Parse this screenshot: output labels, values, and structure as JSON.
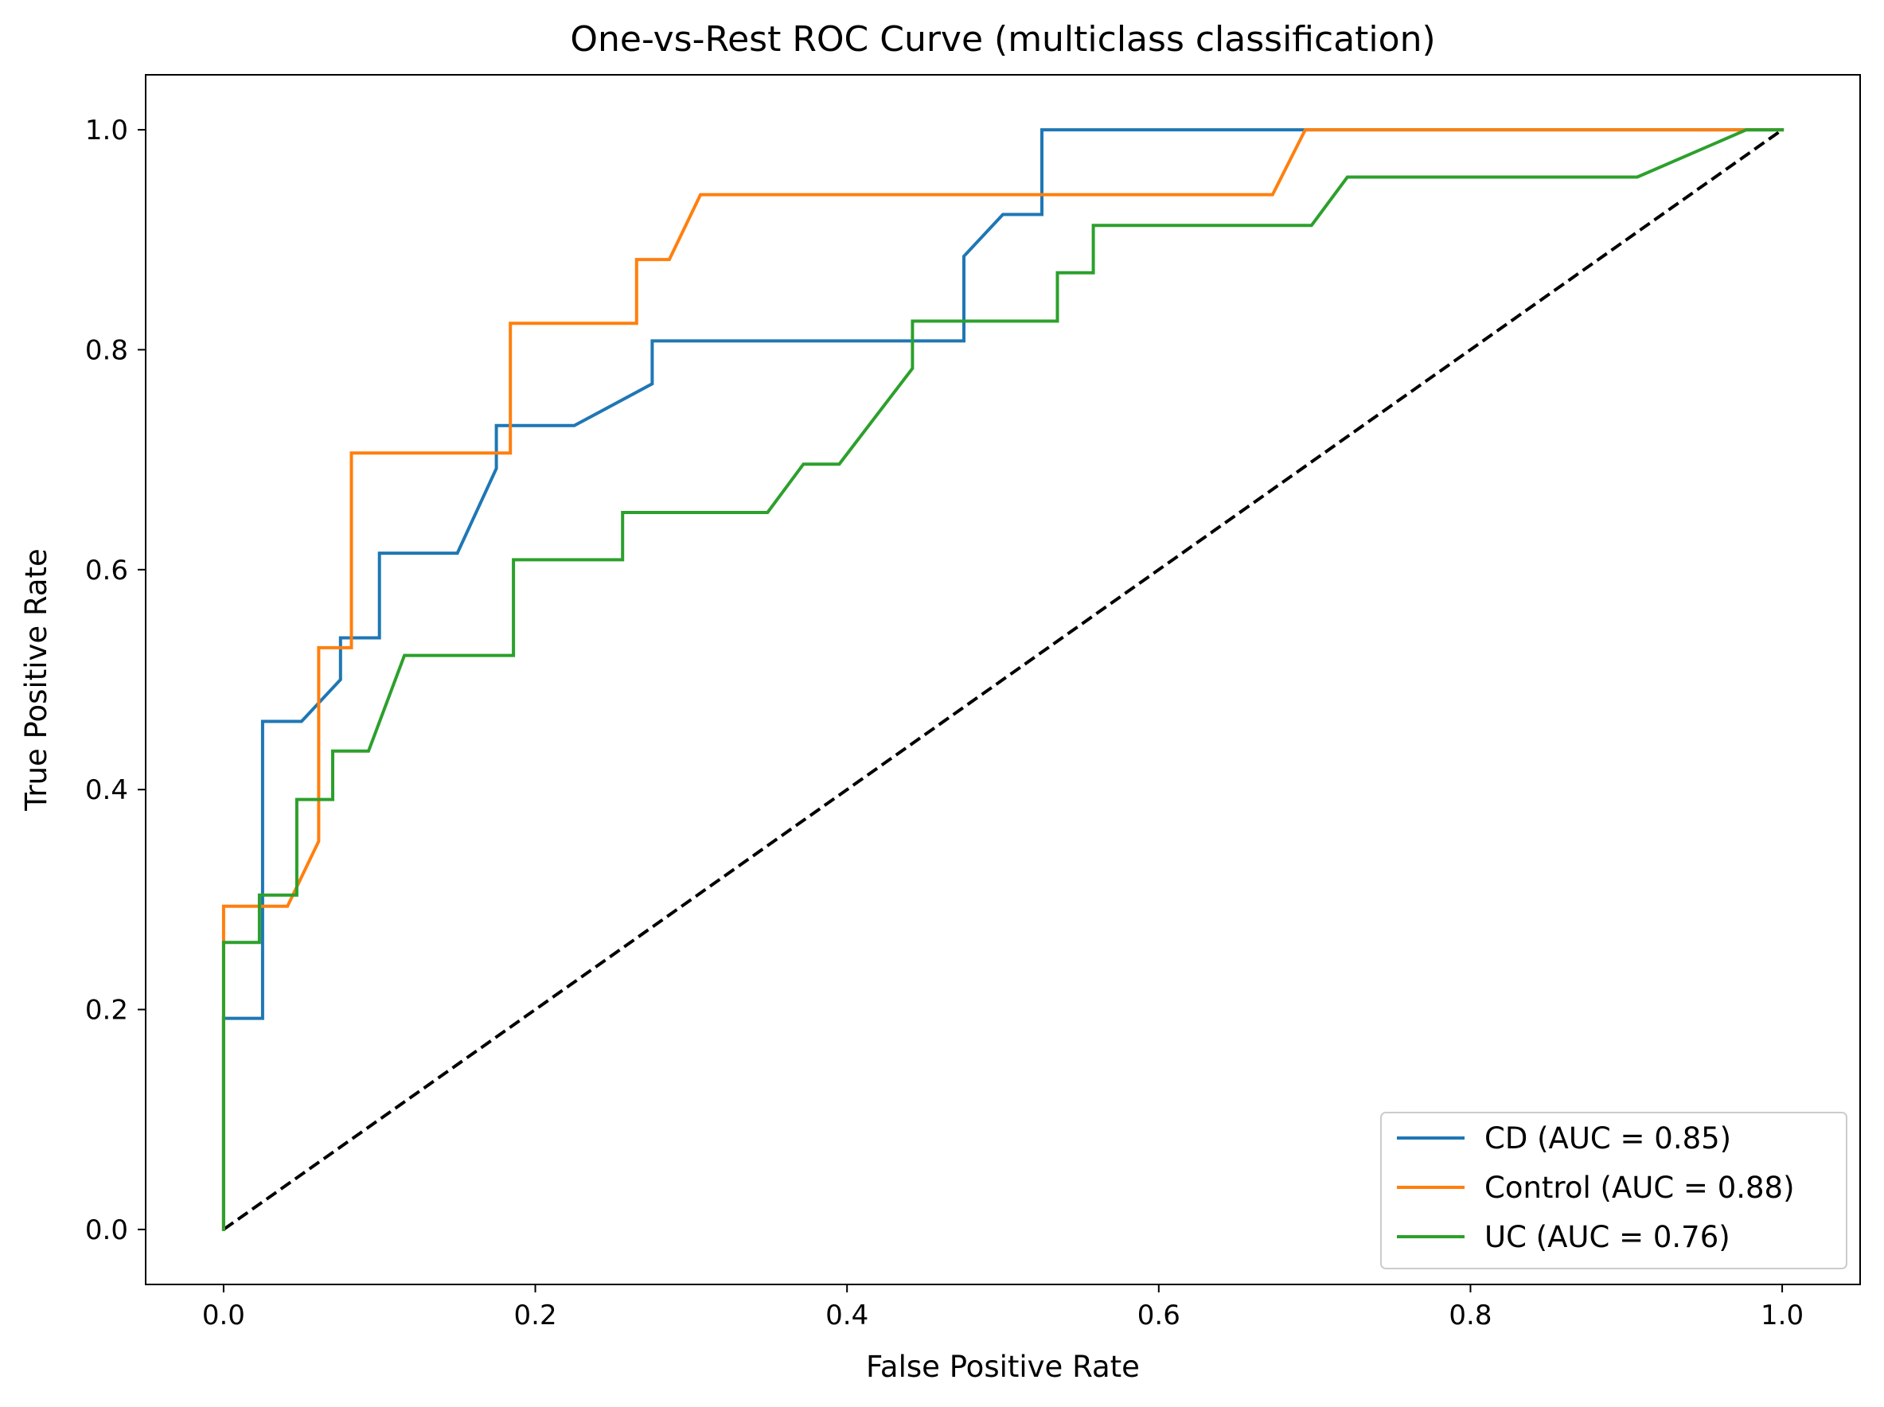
{
  "chart_data": {
    "type": "line",
    "title": "One-vs-Rest ROC Curve (multiclass classification)",
    "xlabel": "False Positive Rate",
    "ylabel": "True Positive Rate",
    "xlim": [
      -0.05,
      1.05
    ],
    "ylim": [
      -0.05,
      1.05
    ],
    "xticks": [
      0.0,
      0.2,
      0.4,
      0.6,
      0.8,
      1.0
    ],
    "yticks": [
      0.0,
      0.2,
      0.4,
      0.6,
      0.8,
      1.0
    ],
    "xtick_labels": [
      "0.0",
      "0.2",
      "0.4",
      "0.6",
      "0.8",
      "1.0"
    ],
    "ytick_labels": [
      "0.0",
      "0.2",
      "0.4",
      "0.6",
      "0.8",
      "1.0"
    ],
    "grid": false,
    "legend_position": "lower-right",
    "series": [
      {
        "name": "CD (AUC = 0.85)",
        "color": "#1f77b4",
        "x": [
          0.0,
          0.0,
          0.025,
          0.025,
          0.05,
          0.075,
          0.075,
          0.1,
          0.1,
          0.15,
          0.175,
          0.175,
          0.225,
          0.275,
          0.275,
          0.475,
          0.475,
          0.5,
          0.525,
          0.525,
          0.7,
          1.0
        ],
        "y": [
          0.0,
          0.192,
          0.192,
          0.462,
          0.462,
          0.5,
          0.538,
          0.538,
          0.615,
          0.615,
          0.692,
          0.731,
          0.731,
          0.769,
          0.808,
          0.808,
          0.885,
          0.923,
          0.923,
          1.0,
          1.0,
          1.0
        ]
      },
      {
        "name": "Control (AUC = 0.88)",
        "color": "#ff7f0e",
        "x": [
          0.0,
          0.0,
          0.041,
          0.061,
          0.061,
          0.082,
          0.082,
          0.184,
          0.184,
          0.265,
          0.265,
          0.286,
          0.306,
          0.673,
          0.694,
          0.98,
          1.0
        ],
        "y": [
          0.0,
          0.294,
          0.294,
          0.353,
          0.529,
          0.529,
          0.706,
          0.706,
          0.824,
          0.824,
          0.882,
          0.882,
          0.941,
          0.941,
          1.0,
          1.0,
          1.0
        ]
      },
      {
        "name": "UC (AUC = 0.76)",
        "color": "#2ca02c",
        "x": [
          0.0,
          0.0,
          0.023,
          0.023,
          0.047,
          0.047,
          0.07,
          0.07,
          0.093,
          0.116,
          0.186,
          0.186,
          0.256,
          0.256,
          0.349,
          0.372,
          0.395,
          0.442,
          0.442,
          0.535,
          0.535,
          0.558,
          0.558,
          0.698,
          0.721,
          0.907,
          0.977,
          1.0
        ],
        "y": [
          0.0,
          0.261,
          0.261,
          0.304,
          0.304,
          0.391,
          0.391,
          0.435,
          0.435,
          0.522,
          0.522,
          0.609,
          0.609,
          0.652,
          0.652,
          0.696,
          0.696,
          0.783,
          0.826,
          0.826,
          0.87,
          0.87,
          0.913,
          0.913,
          0.957,
          0.957,
          1.0,
          1.0
        ]
      }
    ],
    "reference_line": {
      "style": "dashed",
      "color": "#000000",
      "x": [
        0.0,
        1.0
      ],
      "y": [
        0.0,
        1.0
      ]
    }
  }
}
